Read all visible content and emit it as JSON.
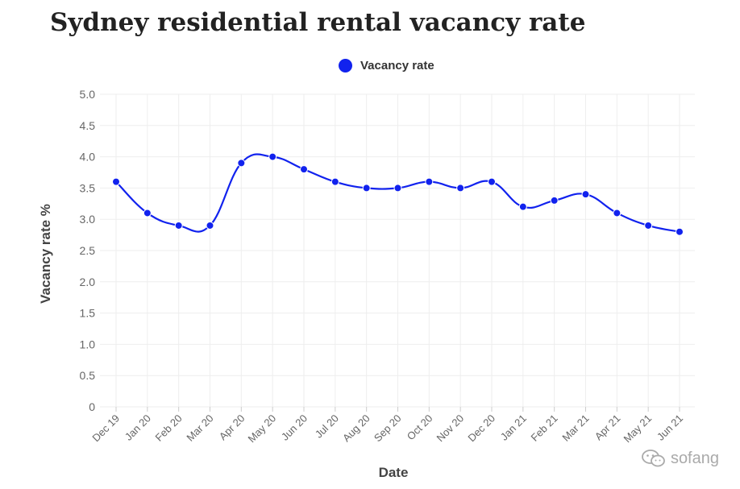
{
  "chart_data": {
    "type": "line",
    "title": "Sydney residential rental vacancy rate",
    "xlabel": "Date",
    "ylabel": "Vacancy rate %",
    "categories": [
      "Dec 19",
      "Jan 20",
      "Feb 20",
      "Mar 20",
      "Apr 20",
      "May 20",
      "Jun 20",
      "Jul 20",
      "Aug 20",
      "Sep 20",
      "Oct 20",
      "Nov 20",
      "Dec 20",
      "Jan 21",
      "Feb 21",
      "Mar 21",
      "Apr 21",
      "May 21",
      "Jun 21"
    ],
    "series": [
      {
        "name": "Vacancy rate",
        "color": "#1122ee",
        "values": [
          3.6,
          3.1,
          2.9,
          2.9,
          3.9,
          4.0,
          3.8,
          3.6,
          3.5,
          3.5,
          3.6,
          3.5,
          3.6,
          3.2,
          3.3,
          3.4,
          3.1,
          2.9,
          2.8
        ]
      }
    ],
    "ylim": [
      0,
      5
    ],
    "yticks": [
      "0",
      "0.5",
      "1.0",
      "1.5",
      "2.0",
      "2.5",
      "3.0",
      "3.5",
      "4.0",
      "4.5",
      "5.0"
    ],
    "grid": true,
    "legend_position": "top"
  },
  "watermark": {
    "text": "sofang",
    "icon": "wechat-icon"
  }
}
